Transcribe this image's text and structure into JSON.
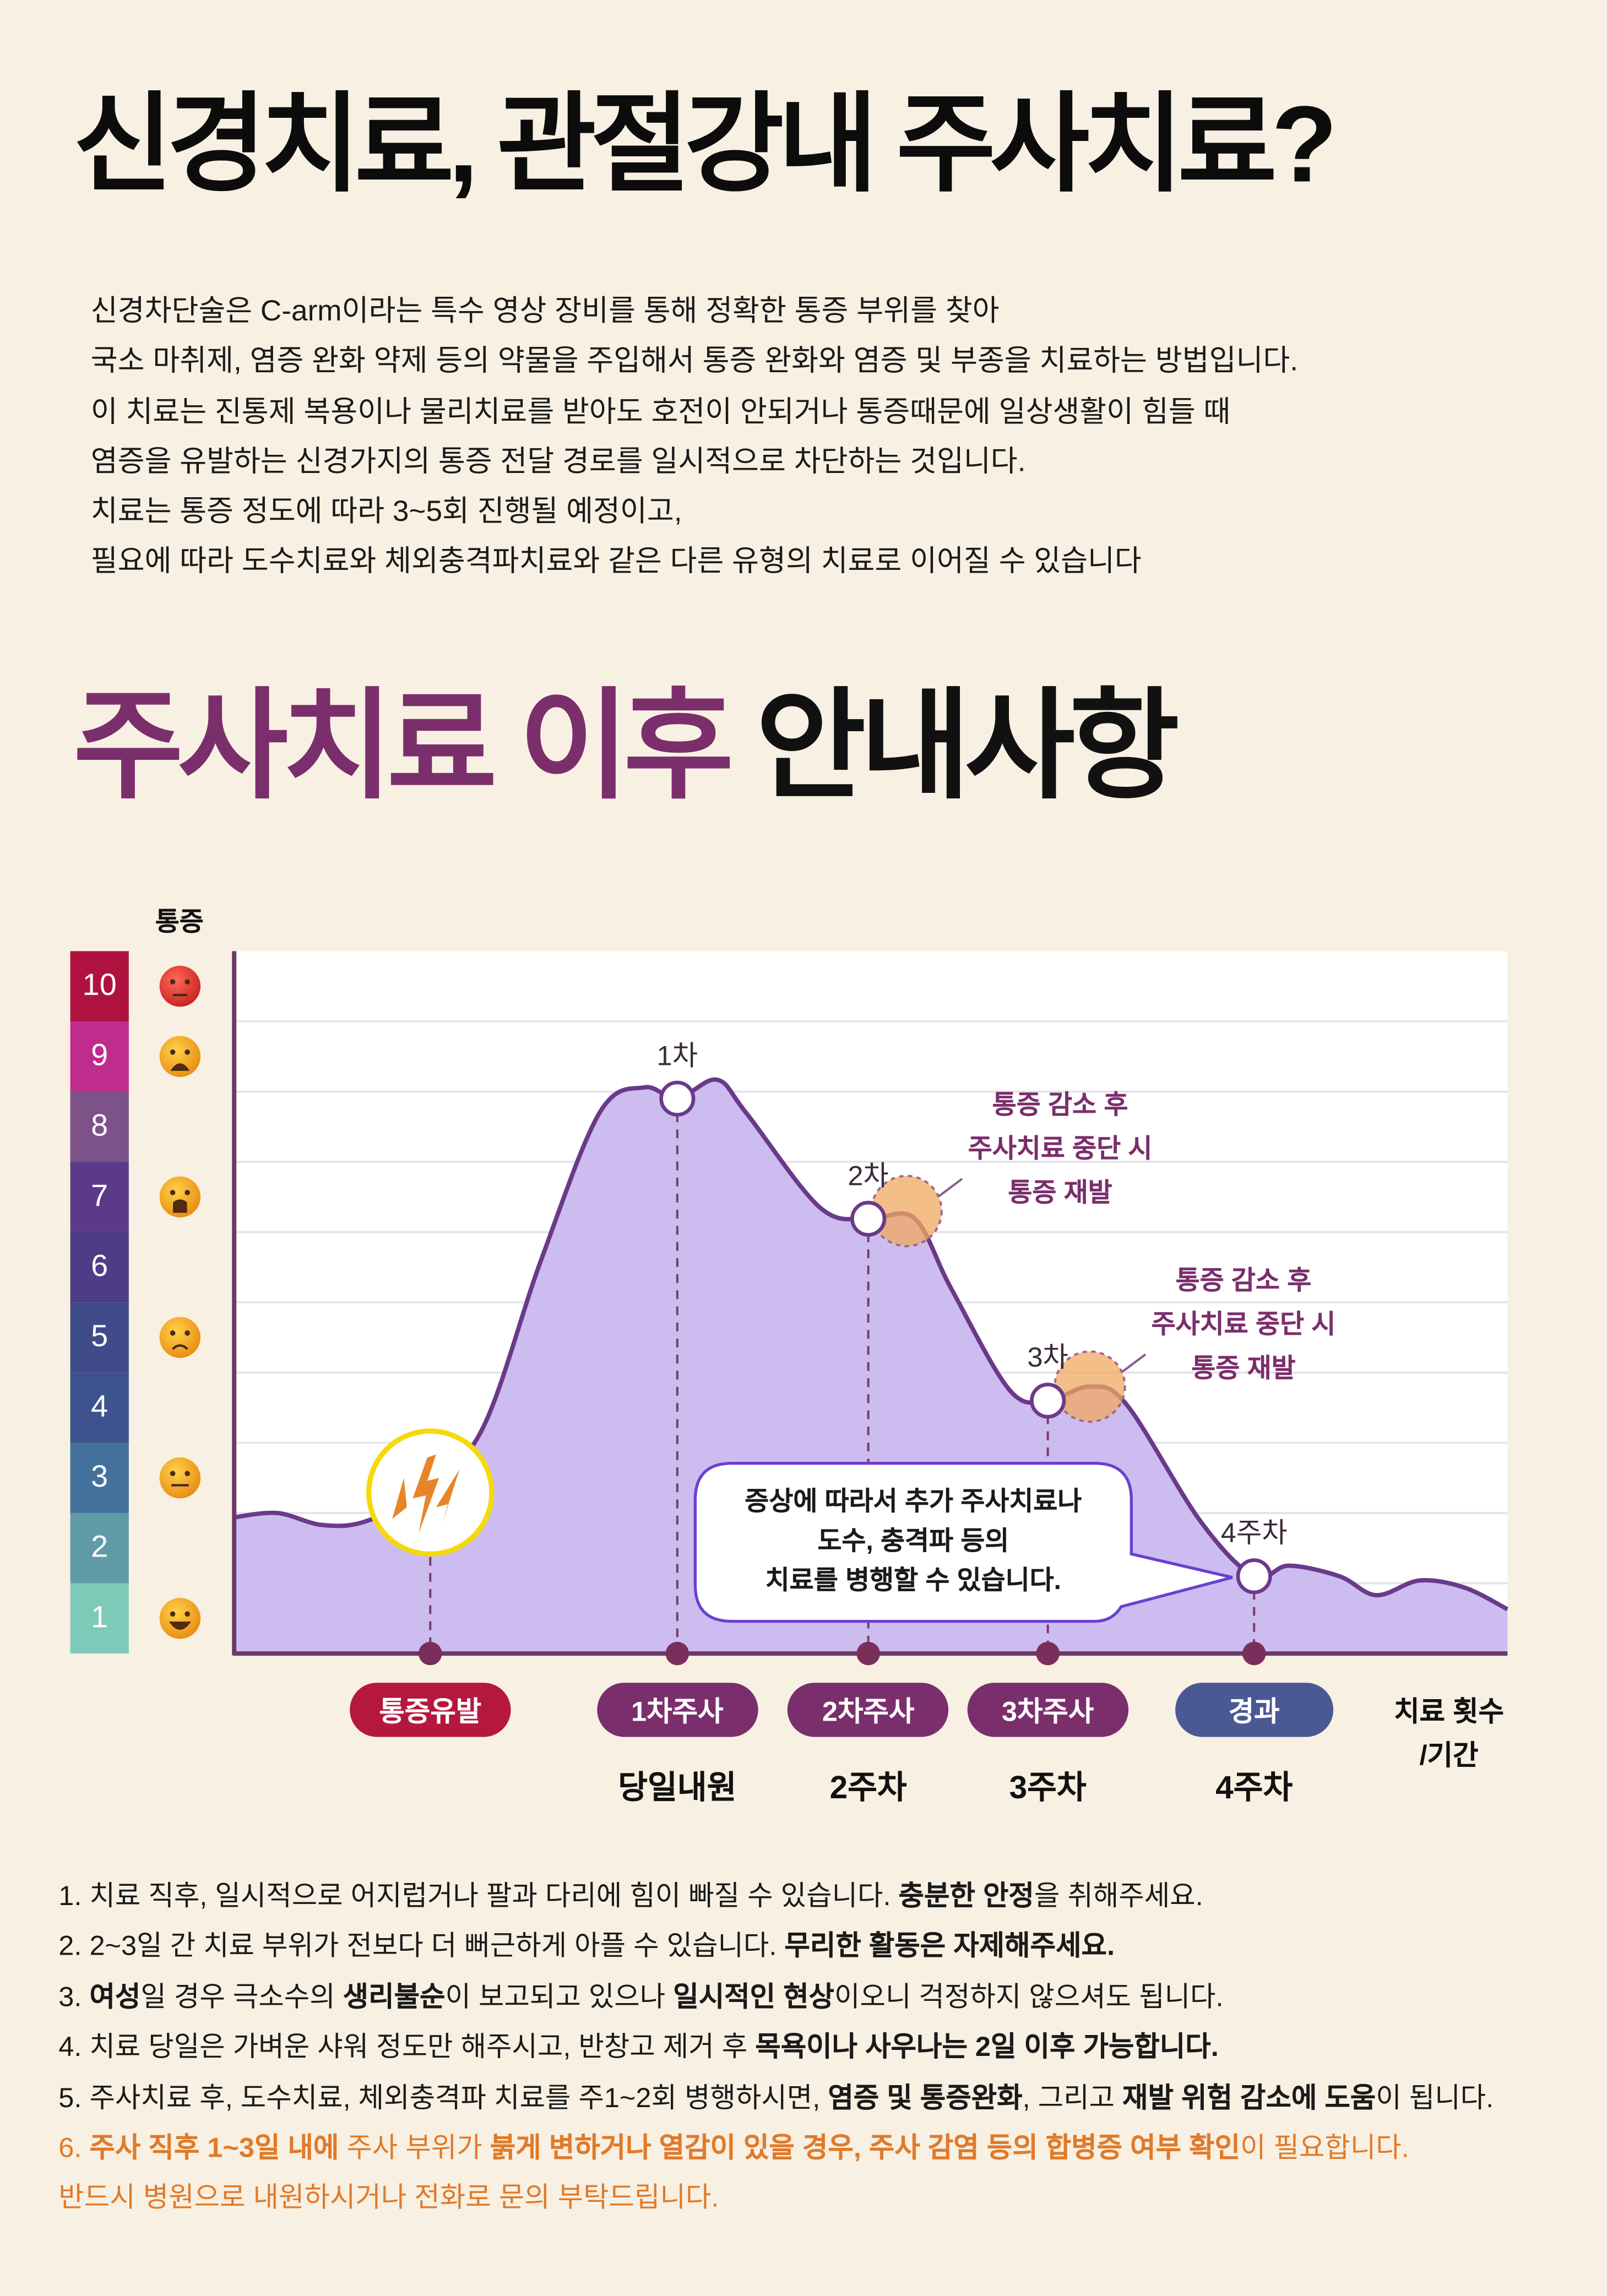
{
  "header": {
    "title": "신경치료, 관절강내 주사치료?",
    "intro_lines": [
      "신경차단술은 C-arm이라는 특수 영상 장비를 통해 정확한 통증 부위를 찾아",
      "국소 마취제, 염증 완화 약제 등의 약물을 주입해서 통증 완화와 염증 및 부종을 치료하는 방법입니다.",
      "이 치료는 진통제 복용이나 물리치료를 받아도 호전이 안되거나 통증때문에 일상생활이 힘들 때",
      "염증을 유발하는 신경가지의 통증 전달 경로를 일시적으로 차단하는 것입니다.",
      "치료는 통증 정도에 따라 3~5회 진행될 예정이고,",
      "필요에 따라 도수치료와 체외충격파치료와 같은 다른 유형의 치료로 이어질 수 있습니다"
    ]
  },
  "section": {
    "title_accent": "주사치료 이후",
    "title_rest": "안내사항"
  },
  "chart_data": {
    "type": "area",
    "ylabel": "통증",
    "xlabel": "치료 횟수 /기간",
    "ylim": [
      0,
      10
    ],
    "xlim": [
      0,
      100
    ],
    "pain_scale": [
      {
        "level": "10",
        "color": "#b0123f",
        "face": "angry"
      },
      {
        "level": "9",
        "color": "#c02b8e",
        "face": "distressed"
      },
      {
        "level": "8",
        "color": "#7c5289",
        "face": ""
      },
      {
        "level": "7",
        "color": "#5c3a8a",
        "face": "crying"
      },
      {
        "level": "6",
        "color": "#4d3d86",
        "face": ""
      },
      {
        "level": "5",
        "color": "#3f4a88",
        "face": "sad"
      },
      {
        "level": "4",
        "color": "#3e528f",
        "face": ""
      },
      {
        "level": "3",
        "color": "#43719b",
        "face": "neutral"
      },
      {
        "level": "2",
        "color": "#5f9ba6",
        "face": ""
      },
      {
        "level": "1",
        "color": "#7ccab7",
        "face": "happy"
      }
    ],
    "curve": [
      [
        0,
        1.94
      ],
      [
        3.4,
        2.0
      ],
      [
        6.9,
        1.83
      ],
      [
        10.3,
        1.88
      ],
      [
        14.9,
        2.3
      ],
      [
        19.5,
        3.2
      ],
      [
        24.1,
        5.6
      ],
      [
        28.7,
        7.7
      ],
      [
        32.2,
        8.06
      ],
      [
        34.8,
        7.9
      ],
      [
        37.9,
        8.17
      ],
      [
        40.2,
        7.7
      ],
      [
        46.0,
        6.35
      ],
      [
        49.8,
        6.19
      ],
      [
        53.4,
        6.2
      ],
      [
        56.3,
        5.2
      ],
      [
        60.9,
        3.75
      ],
      [
        63.9,
        3.6
      ],
      [
        67.2,
        3.8
      ],
      [
        70.1,
        3.54
      ],
      [
        75.9,
        1.88
      ],
      [
        80.1,
        1.1
      ],
      [
        82.8,
        1.25
      ],
      [
        86.8,
        1.1
      ],
      [
        89.7,
        0.83
      ],
      [
        93.1,
        1.04
      ],
      [
        96.6,
        0.94
      ],
      [
        100,
        0.63
      ]
    ],
    "events": [
      {
        "x": 15.4,
        "y": 2.3,
        "point_label": "",
        "pill": "통증유발",
        "pill_color": "#b5173f",
        "sub": "",
        "marker": "lightning"
      },
      {
        "x": 34.8,
        "y": 7.9,
        "point_label": "1차",
        "pill": "1차주사",
        "pill_color": "#7a2e6b",
        "sub": "당일내원",
        "marker": "circle"
      },
      {
        "x": 49.8,
        "y": 6.19,
        "point_label": "2차",
        "pill": "2차주사",
        "pill_color": "#7a2e6b",
        "sub": "2주차",
        "marker": "circle"
      },
      {
        "x": 63.9,
        "y": 3.6,
        "point_label": "3차",
        "pill": "3차주사",
        "pill_color": "#7a2e6b",
        "sub": "3주차",
        "marker": "circle"
      },
      {
        "x": 80.1,
        "y": 1.1,
        "point_label": "4주차",
        "pill": "경과",
        "pill_color": "#4a5894",
        "sub": "4주차",
        "marker": "circle"
      }
    ],
    "relapse_notes": [
      {
        "x": 52.8,
        "y": 6.3,
        "lines": [
          "통증 감소 후",
          "주사치료 중단 시",
          "통증 재발"
        ]
      },
      {
        "x": 67.2,
        "y": 3.8,
        "lines": [
          "통증 감소 후",
          "주사치료 중단 시",
          "통증 재발"
        ]
      }
    ],
    "bubble_lines": [
      "증상에 따라서 추가 주사치료나",
      "도수, 충격파 등의",
      "치료를 병행할 수 있습니다."
    ],
    "axis_name_lines": [
      "치료 횟수",
      "/기간"
    ]
  },
  "notes": [
    {
      "orange": false,
      "segments": [
        {
          "t": "1. 치료 직후, 일시적으로 어지럽거나 팔과 다리에 힘이 빠질 수 있습니다. "
        },
        {
          "t": "충분한 안정",
          "b": true
        },
        {
          "t": "을 취해주세요."
        }
      ]
    },
    {
      "orange": false,
      "segments": [
        {
          "t": "2. 2~3일 간 치료 부위가 전보다 더 뻐근하게 아플 수 있습니다. "
        },
        {
          "t": "무리한 활동은 자제해주세요.",
          "b": true
        }
      ]
    },
    {
      "orange": false,
      "segments": [
        {
          "t": "3. "
        },
        {
          "t": "여성",
          "b": true
        },
        {
          "t": "일 경우 극소수의 "
        },
        {
          "t": "생리불순",
          "b": true
        },
        {
          "t": "이 보고되고 있으나 "
        },
        {
          "t": "일시적인 현상",
          "b": true
        },
        {
          "t": "이오니 걱정하지 않으셔도 됩니다."
        }
      ]
    },
    {
      "orange": false,
      "segments": [
        {
          "t": "4. 치료 당일은 가벼운 샤워 정도만 해주시고, 반창고 제거 후 "
        },
        {
          "t": "목욕이나 사우나는 2일 이후 가능합니다.",
          "b": true
        }
      ]
    },
    {
      "orange": false,
      "segments": [
        {
          "t": "5. 주사치료 후, 도수치료, 체외충격파 치료를 주1~2회 병행하시면, "
        },
        {
          "t": "염증 및 통증완화",
          "b": true
        },
        {
          "t": ", 그리고 "
        },
        {
          "t": "재발 위험 감소에 도움",
          "b": true
        },
        {
          "t": "이 됩니다."
        }
      ]
    },
    {
      "orange": true,
      "segments": [
        {
          "t": "6. "
        },
        {
          "t": "주사 직후 1~3일 내에",
          "b": true
        },
        {
          "t": " 주사 부위가 "
        },
        {
          "t": "붉게 변하거나 열감이 있을 경우, 주사 감염 등의 합병증 여부 확인",
          "b": true
        },
        {
          "t": "이 필요합니다."
        }
      ]
    },
    {
      "orange": true,
      "segments": [
        {
          "t": "반드시 병원으로 내원하시거나 전화로 문의 부탁드립니다."
        }
      ]
    }
  ],
  "colors": {
    "background": "#f8f0e2",
    "accent_purple": "#7a2e6b",
    "area_fill": "#cdbcef",
    "curve_stroke": "#6a3a8a",
    "relapse_orange": "#f0a860",
    "warning_orange": "#e07a2a"
  }
}
